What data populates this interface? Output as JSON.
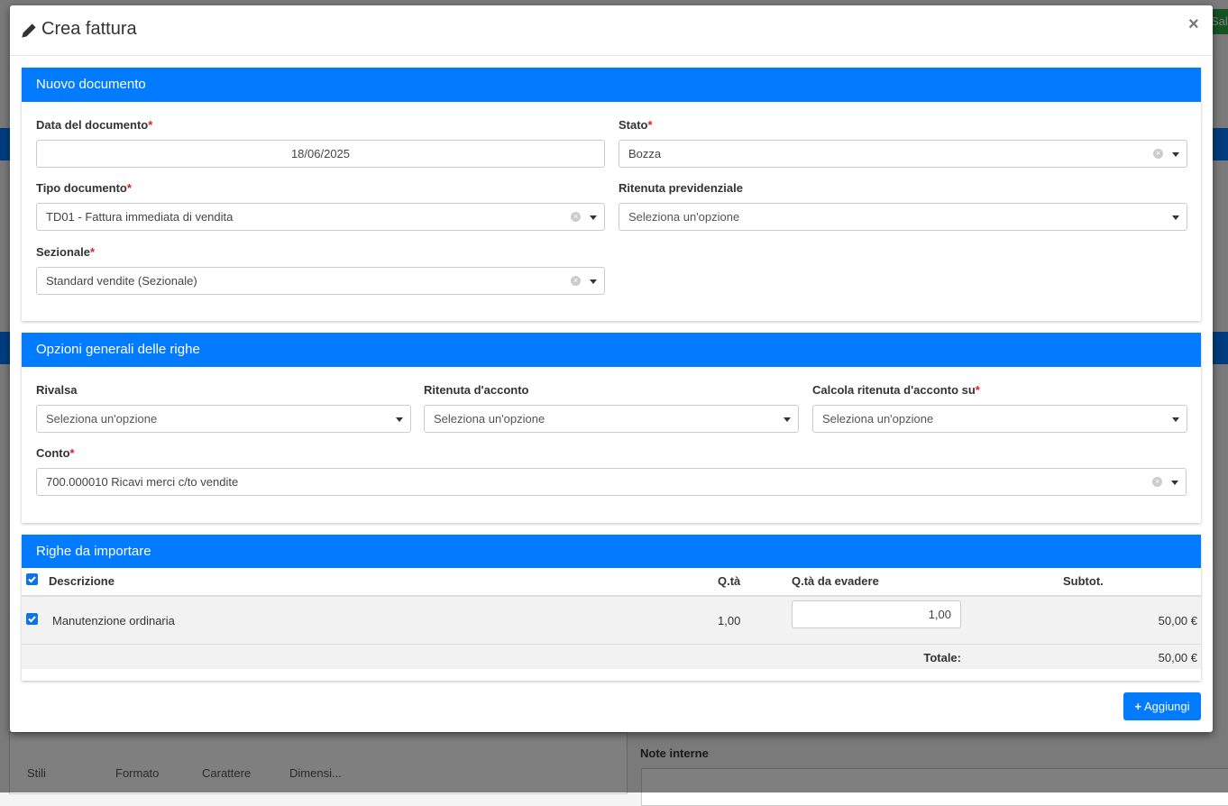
{
  "background": {
    "save_button": "Sal",
    "toolbar": [
      "Stili",
      "Formato",
      "Carattere",
      "Dimensi..."
    ],
    "notes_label": "Note interne"
  },
  "modal": {
    "title": "Crea fattura",
    "close": "×",
    "sections": [
      {
        "title": "Nuovo documento",
        "fields": [
          {
            "label": "Data del documento",
            "required": "*",
            "value": "18/06/2025"
          },
          {
            "label": "Stato",
            "required": "*",
            "value": "Bozza"
          },
          {
            "label": "Tipo documento",
            "required": "*",
            "value": "TD01 - Fattura immediata di vendita"
          },
          {
            "label": "Ritenuta previdenziale",
            "value": "Seleziona un'opzione"
          },
          {
            "label": "Sezionale",
            "required": "*",
            "value": "Standard vendite (Sezionale)"
          }
        ]
      },
      {
        "title": "Opzioni generali delle righe",
        "fields": [
          {
            "label": "Rivalsa",
            "value": "Seleziona un'opzione"
          },
          {
            "label": "Ritenuta d'acconto",
            "value": "Seleziona un'opzione"
          },
          {
            "label": "Calcola ritenuta d'acconto su",
            "required": "*",
            "value": "Seleziona un'opzione"
          },
          {
            "label": "Conto",
            "required": "*",
            "value": "700.000010 Ricavi merci c/to vendite"
          }
        ]
      },
      {
        "title": "Righe da importare",
        "table": {
          "header": [
            "Descrizione",
            "Q.tà",
            "Q.tà da evadere",
            "Subtot."
          ],
          "rows": [
            [
              "Manutenzione ordinaria",
              "1,00",
              "1,00",
              "50,00 €"
            ]
          ],
          "total_label": "Totale:",
          "total": "50,00 €"
        }
      }
    ],
    "submit": "Aggiungi"
  }
}
